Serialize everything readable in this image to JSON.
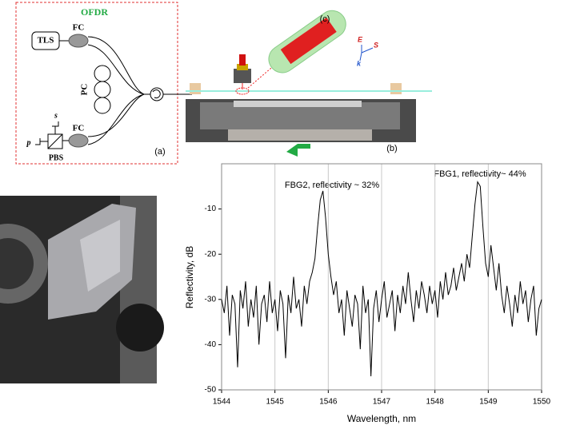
{
  "diagram": {
    "box_title": "OFDR",
    "tls": "TLS",
    "fc_top": "FC",
    "fc_bottom": "FC",
    "pc": "PC",
    "s": "s",
    "p": "p",
    "pbs": "PBS",
    "label_a": "(a)",
    "label_b": "(b)",
    "label_c": "(c)",
    "e_axis": "E",
    "s_axis": "S",
    "k_axis": "k"
  },
  "chart_data": {
    "type": "line",
    "xlabel": "Wavelength, nm",
    "ylabel": "Reflectivity, dB",
    "annotations": [
      "FBG2, reflectivity ~ 32%",
      "FBG1, reflectivity~ 44%"
    ],
    "color": "#000000",
    "grid": "x",
    "xlim": [
      1544,
      1550
    ],
    "xticks": [
      1544,
      1545,
      1546,
      1547,
      1548,
      1549,
      1550
    ],
    "ylim": [
      -50,
      0
    ],
    "yticks": [
      -10,
      -20,
      -30,
      -40,
      -50
    ],
    "x": [
      1544.0,
      1544.05,
      1544.1,
      1544.15,
      1544.2,
      1544.25,
      1544.3,
      1544.35,
      1544.4,
      1544.45,
      1544.5,
      1544.55,
      1544.6,
      1544.65,
      1544.7,
      1544.75,
      1544.8,
      1544.85,
      1544.9,
      1544.95,
      1545.0,
      1545.05,
      1545.1,
      1545.15,
      1545.2,
      1545.25,
      1545.3,
      1545.35,
      1545.4,
      1545.45,
      1545.5,
      1545.55,
      1545.6,
      1545.65,
      1545.7,
      1545.75,
      1545.8,
      1545.85,
      1545.9,
      1545.95,
      1546.0,
      1546.05,
      1546.1,
      1546.15,
      1546.2,
      1546.25,
      1546.3,
      1546.35,
      1546.4,
      1546.45,
      1546.5,
      1546.55,
      1546.6,
      1546.65,
      1546.7,
      1546.75,
      1546.8,
      1546.85,
      1546.9,
      1546.95,
      1547.0,
      1547.05,
      1547.1,
      1547.15,
      1547.2,
      1547.25,
      1547.3,
      1547.35,
      1547.4,
      1547.45,
      1547.5,
      1547.55,
      1547.6,
      1547.65,
      1547.7,
      1547.75,
      1547.8,
      1547.85,
      1547.9,
      1547.95,
      1548.0,
      1548.05,
      1548.1,
      1548.15,
      1548.2,
      1548.25,
      1548.3,
      1548.35,
      1548.4,
      1548.45,
      1548.5,
      1548.55,
      1548.6,
      1548.65,
      1548.7,
      1548.75,
      1548.8,
      1548.85,
      1548.9,
      1548.95,
      1549.0,
      1549.05,
      1549.1,
      1549.15,
      1549.2,
      1549.25,
      1549.3,
      1549.35,
      1549.4,
      1549.45,
      1549.5,
      1549.55,
      1549.6,
      1549.65,
      1549.7,
      1549.75,
      1549.8,
      1549.85,
      1549.9,
      1549.95,
      1550.0
    ],
    "values": [
      -30,
      -33,
      -27,
      -38,
      -29,
      -31,
      -45,
      -28,
      -32,
      -26,
      -36,
      -30,
      -34,
      -27,
      -40,
      -31,
      -29,
      -35,
      -26,
      -33,
      -30,
      -37,
      -28,
      -31,
      -43,
      -29,
      -33,
      -25,
      -32,
      -30,
      -36,
      -27,
      -31,
      -26,
      -24,
      -21,
      -14,
      -8,
      -6,
      -12,
      -20,
      -25,
      -29,
      -26,
      -33,
      -30,
      -38,
      -28,
      -32,
      -36,
      -29,
      -31,
      -41,
      -27,
      -33,
      -30,
      -47,
      -32,
      -28,
      -35,
      -30,
      -26,
      -34,
      -31,
      -28,
      -37,
      -29,
      -33,
      -27,
      -31,
      -24,
      -30,
      -35,
      -28,
      -32,
      -26,
      -29,
      -33,
      -27,
      -31,
      -28,
      -34,
      -26,
      -30,
      -24,
      -29,
      -27,
      -23,
      -28,
      -25,
      -22,
      -26,
      -20,
      -23,
      -16,
      -9,
      -4,
      -5,
      -14,
      -22,
      -25,
      -18,
      -23,
      -28,
      -22,
      -29,
      -33,
      -27,
      -31,
      -36,
      -29,
      -33,
      -26,
      -31,
      -28,
      -35,
      -30,
      -27,
      -38,
      -32,
      -30
    ]
  }
}
